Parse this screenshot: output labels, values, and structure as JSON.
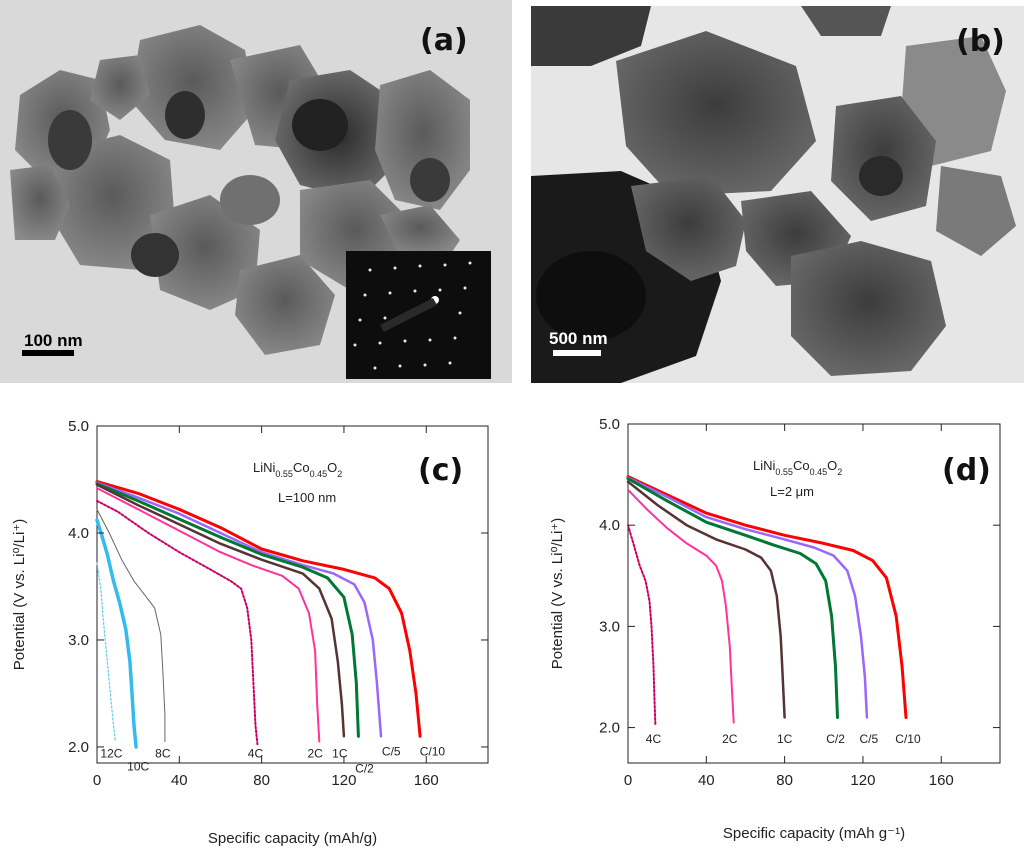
{
  "panel_a": {
    "letter": "(a)",
    "scale_label": "100 nm"
  },
  "panel_b": {
    "letter": "(b)",
    "scale_label": "500 nm"
  },
  "chart_data": [
    {
      "id": "c",
      "type": "line",
      "panel_letter": "(c)",
      "compound": {
        "base1": "LiNi",
        "sub1": "0.55",
        "base2": "Co",
        "sub2": "0.45",
        "base3": "O",
        "sub3": "2"
      },
      "annotation": "L=100 nm",
      "xlabel": "Specific capacity (mAh/g)",
      "ylabel": "Potential (V vs. Li⁰/Li⁺)",
      "xlim": [
        0,
        190
      ],
      "ylim": [
        1.85,
        5.0
      ],
      "xticks": [
        0,
        40,
        80,
        120,
        160
      ],
      "yticks": [
        2.0,
        3.0,
        4.0,
        5.0
      ],
      "ytick_labels": [
        "2.0",
        "3.0",
        "4.0",
        "5.0"
      ],
      "series": [
        {
          "name": "C/10",
          "color": "#ff0000",
          "width": 3,
          "dash": "",
          "points": [
            [
              0,
              4.48
            ],
            [
              20,
              4.37
            ],
            [
              40,
              4.22
            ],
            [
              60,
              4.05
            ],
            [
              80,
              3.85
            ],
            [
              100,
              3.74
            ],
            [
              120,
              3.66
            ],
            [
              135,
              3.58
            ],
            [
              142,
              3.48
            ],
            [
              148,
              3.25
            ],
            [
              152,
              2.9
            ],
            [
              155,
              2.5
            ],
            [
              157,
              2.1
            ]
          ]
        },
        {
          "name": "C/5",
          "color": "#9966ff",
          "width": 2.5,
          "dash": "",
          "points": [
            [
              0,
              4.47
            ],
            [
              20,
              4.33
            ],
            [
              40,
              4.18
            ],
            [
              60,
              4.0
            ],
            [
              80,
              3.82
            ],
            [
              100,
              3.7
            ],
            [
              115,
              3.62
            ],
            [
              125,
              3.52
            ],
            [
              130,
              3.35
            ],
            [
              134,
              3.0
            ],
            [
              136,
              2.6
            ],
            [
              138,
              2.1
            ]
          ]
        },
        {
          "name": "C/2",
          "color": "#007733",
          "width": 3,
          "dash": "",
          "points": [
            [
              0,
              4.46
            ],
            [
              20,
              4.3
            ],
            [
              40,
              4.13
            ],
            [
              60,
              3.96
            ],
            [
              80,
              3.8
            ],
            [
              100,
              3.68
            ],
            [
              112,
              3.58
            ],
            [
              120,
              3.4
            ],
            [
              124,
              3.05
            ],
            [
              126,
              2.6
            ],
            [
              127,
              2.1
            ]
          ]
        },
        {
          "name": "1C",
          "color": "#553333",
          "width": 2.5,
          "dash": "",
          "points": [
            [
              0,
              4.45
            ],
            [
              20,
              4.26
            ],
            [
              40,
              4.08
            ],
            [
              60,
              3.9
            ],
            [
              80,
              3.75
            ],
            [
              100,
              3.62
            ],
            [
              108,
              3.48
            ],
            [
              114,
              3.2
            ],
            [
              117,
              2.8
            ],
            [
              119,
              2.4
            ],
            [
              120,
              2.1
            ]
          ]
        },
        {
          "name": "2C",
          "color": "#ff3399",
          "width": 2,
          "dash": "",
          "points": [
            [
              0,
              4.42
            ],
            [
              20,
              4.22
            ],
            [
              40,
              4.02
            ],
            [
              60,
              3.82
            ],
            [
              75,
              3.7
            ],
            [
              90,
              3.6
            ],
            [
              98,
              3.48
            ],
            [
              103,
              3.25
            ],
            [
              106,
              2.9
            ],
            [
              107,
              2.4
            ],
            [
              108,
              2.05
            ]
          ]
        },
        {
          "name": "4C",
          "color": "#cc0066",
          "width": 2,
          "dash": "2,2",
          "points": [
            [
              0,
              4.3
            ],
            [
              10,
              4.2
            ],
            [
              25,
              4.0
            ],
            [
              40,
              3.82
            ],
            [
              55,
              3.66
            ],
            [
              65,
              3.55
            ],
            [
              70,
              3.48
            ],
            [
              73,
              3.3
            ],
            [
              75,
              3.0
            ],
            [
              76,
              2.6
            ],
            [
              77,
              2.2
            ],
            [
              78,
              2.02
            ]
          ]
        },
        {
          "name": "8C",
          "color": "#666666",
          "width": 1,
          "dash": "",
          "points": [
            [
              0,
              4.22
            ],
            [
              6,
              4.0
            ],
            [
              12,
              3.75
            ],
            [
              18,
              3.55
            ],
            [
              24,
              3.4
            ],
            [
              28,
              3.3
            ],
            [
              31,
              3.05
            ],
            [
              32,
              2.7
            ],
            [
              33,
              2.3
            ],
            [
              33,
              2.05
            ]
          ]
        },
        {
          "name": "10C",
          "color": "#33bbee",
          "width": 3.5,
          "dash": "",
          "points": [
            [
              0,
              4.12
            ],
            [
              2,
              4.0
            ],
            [
              5,
              3.8
            ],
            [
              8,
              3.55
            ],
            [
              11,
              3.35
            ],
            [
              14,
              3.1
            ],
            [
              16,
              2.8
            ],
            [
              17,
              2.5
            ],
            [
              18,
              2.2
            ],
            [
              19,
              2.0
            ]
          ]
        },
        {
          "name": "12C",
          "color": "#66ccee",
          "width": 1.2,
          "dash": "2,2",
          "points": [
            [
              0,
              3.72
            ],
            [
              2,
              3.45
            ],
            [
              3,
              3.2
            ],
            [
              4,
              3.0
            ],
            [
              5,
              2.8
            ],
            [
              6,
              2.6
            ],
            [
              7,
              2.4
            ],
            [
              8,
              2.2
            ],
            [
              9,
              2.05
            ]
          ]
        }
      ],
      "labels": [
        {
          "text": "12C",
          "x": 7,
          "y": 1.9
        },
        {
          "text": "10C",
          "x": 20,
          "y": 1.78
        },
        {
          "text": "8C",
          "x": 32,
          "y": 1.9
        },
        {
          "text": "4C",
          "x": 77,
          "y": 1.9
        },
        {
          "text": "2C",
          "x": 106,
          "y": 1.9
        },
        {
          "text": "1C",
          "x": 118,
          "y": 1.9
        },
        {
          "text": "C/2",
          "x": 130,
          "y": 1.76
        },
        {
          "text": "C/5",
          "x": 143,
          "y": 1.92
        },
        {
          "text": "C/10",
          "x": 163,
          "y": 1.92
        }
      ]
    },
    {
      "id": "d",
      "type": "line",
      "panel_letter": "(d)",
      "compound": {
        "base1": "LiNi",
        "sub1": "0.55",
        "base2": "Co",
        "sub2": "0.45",
        "base3": "O",
        "sub3": "2"
      },
      "annotation": "L=2 μm",
      "xlabel": "Specific capacity (mAh g⁻¹)",
      "ylabel": "Potential (V vs. Li⁰/Li⁺)",
      "xlim": [
        0,
        190
      ],
      "ylim": [
        1.65,
        5.0
      ],
      "xticks": [
        0,
        40,
        80,
        120,
        160
      ],
      "yticks": [
        2.0,
        3.0,
        4.0,
        5.0
      ],
      "ytick_labels": [
        "2.0",
        "3.0",
        "4.0",
        "5.0"
      ],
      "series": [
        {
          "name": "C/10",
          "color": "#ff0000",
          "width": 3,
          "dash": "",
          "points": [
            [
              0,
              4.48
            ],
            [
              20,
              4.3
            ],
            [
              40,
              4.12
            ],
            [
              60,
              4.0
            ],
            [
              80,
              3.9
            ],
            [
              100,
              3.82
            ],
            [
              115,
              3.75
            ],
            [
              125,
              3.65
            ],
            [
              132,
              3.48
            ],
            [
              137,
              3.1
            ],
            [
              140,
              2.6
            ],
            [
              142,
              2.1
            ]
          ]
        },
        {
          "name": "C/5",
          "color": "#9966ff",
          "width": 2.5,
          "dash": "",
          "points": [
            [
              0,
              4.47
            ],
            [
              20,
              4.28
            ],
            [
              40,
              4.08
            ],
            [
              60,
              3.96
            ],
            [
              80,
              3.86
            ],
            [
              95,
              3.78
            ],
            [
              105,
              3.7
            ],
            [
              112,
              3.55
            ],
            [
              116,
              3.3
            ],
            [
              119,
              2.9
            ],
            [
              121,
              2.5
            ],
            [
              122,
              2.1
            ]
          ]
        },
        {
          "name": "C/2",
          "color": "#007733",
          "width": 3,
          "dash": "",
          "points": [
            [
              0,
              4.46
            ],
            [
              20,
              4.24
            ],
            [
              40,
              4.03
            ],
            [
              60,
              3.9
            ],
            [
              75,
              3.8
            ],
            [
              88,
              3.72
            ],
            [
              96,
              3.62
            ],
            [
              101,
              3.45
            ],
            [
              104,
              3.1
            ],
            [
              106,
              2.6
            ],
            [
              107,
              2.1
            ]
          ]
        },
        {
          "name": "1C",
          "color": "#553333",
          "width": 2.5,
          "dash": "",
          "points": [
            [
              0,
              4.43
            ],
            [
              15,
              4.2
            ],
            [
              30,
              4.0
            ],
            [
              45,
              3.86
            ],
            [
              60,
              3.76
            ],
            [
              68,
              3.68
            ],
            [
              73,
              3.55
            ],
            [
              76,
              3.3
            ],
            [
              78,
              2.9
            ],
            [
              79,
              2.5
            ],
            [
              80,
              2.1
            ]
          ]
        },
        {
          "name": "2C",
          "color": "#ff3399",
          "width": 2,
          "dash": "",
          "points": [
            [
              0,
              4.35
            ],
            [
              10,
              4.15
            ],
            [
              20,
              3.97
            ],
            [
              30,
              3.82
            ],
            [
              40,
              3.7
            ],
            [
              45,
              3.6
            ],
            [
              48,
              3.45
            ],
            [
              50,
              3.2
            ],
            [
              52,
              2.8
            ],
            [
              53,
              2.4
            ],
            [
              54,
              2.05
            ]
          ]
        },
        {
          "name": "4C",
          "color": "#cc0066",
          "width": 2,
          "dash": "2,2",
          "points": [
            [
              0,
              4.0
            ],
            [
              3,
              3.8
            ],
            [
              6,
              3.6
            ],
            [
              9,
              3.45
            ],
            [
              11,
              3.25
            ],
            [
              12,
              3.0
            ],
            [
              13,
              2.6
            ],
            [
              13.5,
              2.3
            ],
            [
              14,
              2.02
            ]
          ]
        }
      ],
      "labels": [
        {
          "text": "4C",
          "x": 13,
          "y": 1.85
        },
        {
          "text": "2C",
          "x": 52,
          "y": 1.85
        },
        {
          "text": "1C",
          "x": 80,
          "y": 1.85
        },
        {
          "text": "C/2",
          "x": 106,
          "y": 1.85
        },
        {
          "text": "C/5",
          "x": 123,
          "y": 1.85
        },
        {
          "text": "C/10",
          "x": 143,
          "y": 1.85
        }
      ]
    }
  ]
}
